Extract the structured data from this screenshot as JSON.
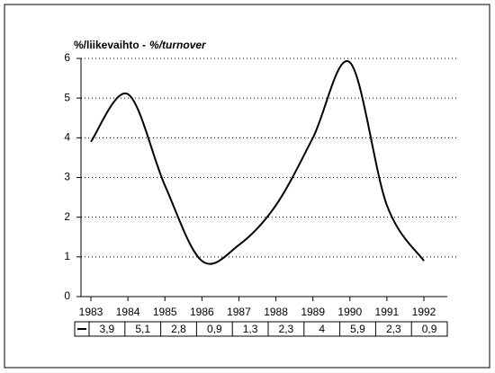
{
  "chart_data": {
    "type": "line",
    "title": "%/liikevaihto -",
    "title_italic": "%/turnover",
    "x": [
      1983,
      1984,
      1985,
      1986,
      1987,
      1988,
      1989,
      1990,
      1991,
      1992
    ],
    "values": [
      3.9,
      5.1,
      2.8,
      0.9,
      1.3,
      2.3,
      4,
      5.9,
      2.3,
      0.9
    ],
    "value_labels": [
      "3,9",
      "5,1",
      "2,8",
      "0,9",
      "1,3",
      "2,3",
      "4",
      "5,9",
      "2,3",
      "0,9"
    ],
    "color": "#000000",
    "xlim": [
      1983,
      1992
    ],
    "xticks": [
      1983,
      1984,
      1985,
      1986,
      1987,
      1988,
      1989,
      1990,
      1991,
      1992
    ],
    "ylim": [
      0,
      6
    ],
    "yticks": [
      0,
      1,
      2,
      3,
      4,
      5,
      6
    ],
    "grid": true
  }
}
